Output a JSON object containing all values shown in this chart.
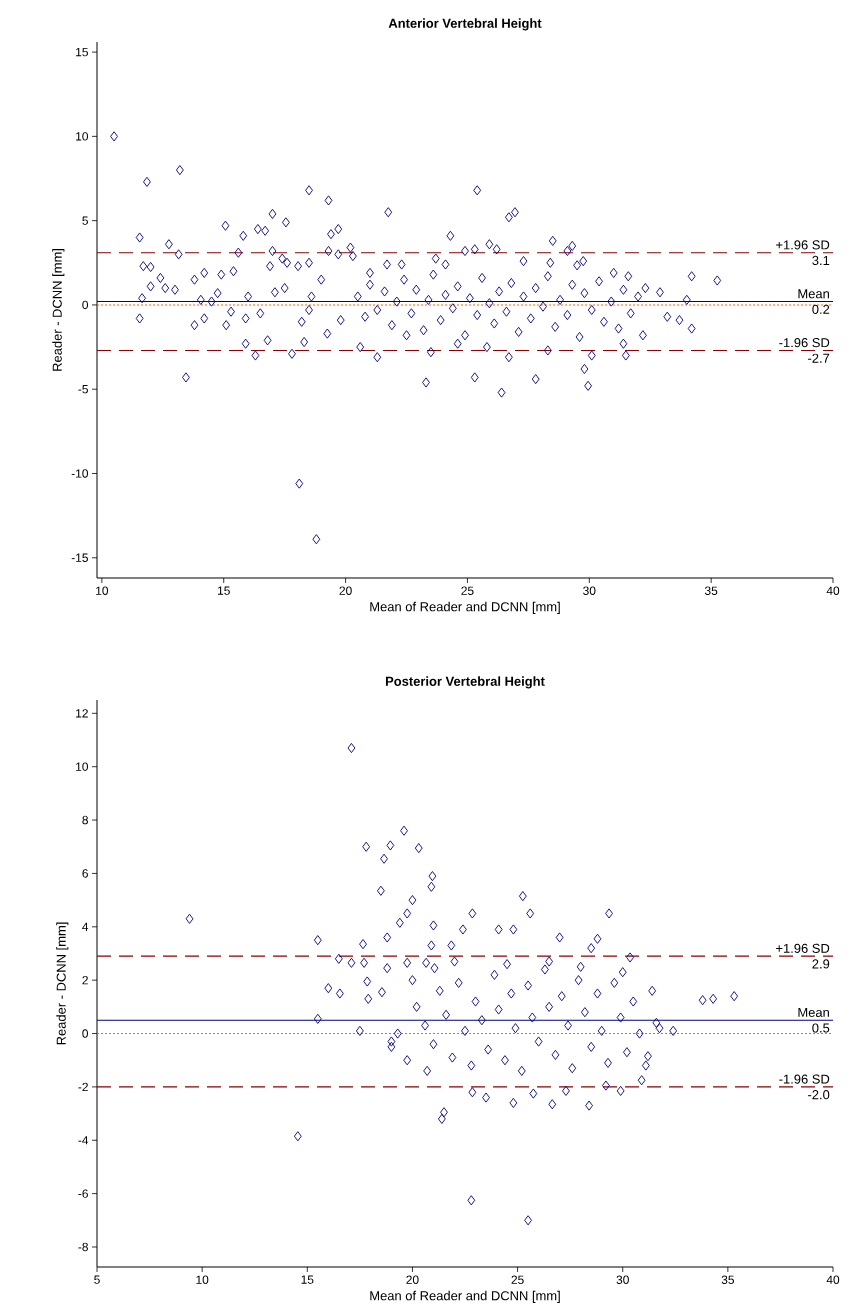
{
  "chart_data": [
    {
      "type": "scatter",
      "title": "Anterior Vertebral Height",
      "xlabel": "Mean of Reader and DCNN [mm]",
      "ylabel": "Reader - DCNN [mm]",
      "color": "#000080",
      "marker": "diamond",
      "x": [
        10.5,
        11.85,
        13.2,
        11.55,
        12.75,
        13.15,
        11.55,
        13.45,
        11.65,
        12.0,
        11.7,
        12.0,
        12.4,
        12.6,
        13.8,
        14.2,
        13.8,
        14.2,
        14.06,
        14.75,
        15.07,
        15.1,
        14.9,
        15.4,
        15.6,
        15.8,
        15.9,
        15.9,
        16.3,
        16.4,
        16.7,
        17.0,
        17.55,
        16.8,
        17.0,
        16.9,
        17.4,
        17.6,
        17.1,
        17.8,
        18.05,
        18.2,
        18.3,
        18.1,
        18.8,
        18.5,
        19.3,
        19.4,
        19.7,
        19.3,
        19.7,
        19.25,
        18.5,
        18.6,
        20.2,
        20.3,
        20.6,
        21.3,
        21.75,
        21.7,
        22.3,
        21.0,
        22.5,
        23.3,
        23.5,
        23.7,
        24.1,
        24.3,
        24.6,
        24.9,
        25.3,
        25.4,
        25.3,
        25.8,
        25.9,
        26.2,
        26.4,
        26.7,
        26.7,
        26.95,
        27.3,
        27.8,
        28.3,
        28.5,
        28.4,
        29.1,
        29.3,
        29.5,
        29.75,
        29.8,
        29.95,
        30.1,
        31.0,
        31.6,
        31.4,
        31.5,
        32.2,
        32.3,
        32.9,
        33.2,
        33.7,
        34.0,
        34.2,
        34.2,
        35.25,
        20.5,
        20.8,
        21.0,
        21.3,
        21.6,
        21.9,
        22.1,
        22.4,
        22.7,
        22.9,
        23.2,
        23.4,
        23.6,
        23.9,
        24.1,
        24.4,
        24.6,
        24.9,
        25.1,
        25.4,
        25.6,
        25.9,
        26.1,
        26.3,
        26.6,
        26.8,
        27.1,
        27.3,
        27.6,
        27.8,
        28.1,
        28.3,
        28.6,
        28.8,
        29.1,
        29.3,
        29.6,
        29.8,
        30.1,
        30.4,
        30.6,
        30.9,
        31.2,
        31.4,
        31.7,
        32.0,
        16.0,
        16.5,
        17.5,
        18.5,
        19.0,
        19.8,
        14.5,
        15.3,
        13.0
      ],
      "values": [
        10.0,
        7.3,
        8.0,
        4.0,
        3.6,
        3.0,
        -0.8,
        -4.3,
        0.4,
        1.1,
        2.3,
        2.25,
        1.6,
        1.0,
        -1.2,
        -0.8,
        1.5,
        1.9,
        0.3,
        0.7,
        4.7,
        -1.2,
        1.8,
        2.0,
        3.1,
        4.1,
        -0.8,
        -2.3,
        -3.0,
        4.5,
        4.4,
        5.4,
        4.9,
        -2.1,
        3.2,
        2.3,
        2.75,
        2.5,
        0.75,
        -2.9,
        2.3,
        -1.0,
        -2.2,
        -10.6,
        -13.9,
        6.8,
        6.2,
        4.2,
        4.5,
        3.2,
        3.0,
        -1.7,
        2.5,
        0.5,
        3.4,
        2.9,
        -2.5,
        -3.1,
        5.5,
        2.4,
        2.4,
        1.9,
        -1.8,
        -4.6,
        -2.8,
        2.75,
        2.4,
        4.1,
        -2.3,
        3.2,
        3.3,
        6.8,
        -4.3,
        -2.5,
        3.6,
        3.3,
        -5.2,
        -3.1,
        5.2,
        5.5,
        2.6,
        -4.4,
        -2.7,
        3.8,
        2.5,
        3.2,
        3.5,
        2.35,
        2.6,
        -3.8,
        -4.8,
        -3.0,
        1.9,
        1.7,
        -2.3,
        -3.0,
        -1.8,
        1.0,
        0.75,
        -0.7,
        -0.9,
        0.3,
        1.7,
        -1.4,
        1.45,
        0.5,
        -0.7,
        1.2,
        -0.3,
        0.8,
        -1.2,
        0.2,
        1.5,
        -0.5,
        0.9,
        -1.5,
        0.3,
        1.8,
        -0.9,
        0.6,
        -0.2,
        1.1,
        -1.8,
        0.4,
        -0.6,
        1.6,
        0.1,
        -1.1,
        0.8,
        -0.4,
        1.3,
        -1.6,
        0.5,
        -0.8,
        1.0,
        -0.1,
        1.7,
        -1.3,
        0.3,
        -0.6,
        1.2,
        -1.9,
        0.7,
        -0.3,
        1.4,
        -1.0,
        0.2,
        -1.4,
        0.9,
        -0.5,
        0.5,
        0.5,
        -0.5,
        1.0,
        -0.3,
        1.5,
        -0.9,
        0.2,
        -0.4,
        0.9
      ],
      "xlim": [
        9.8,
        40
      ],
      "xticks": [
        10,
        15,
        20,
        25,
        30,
        35,
        40
      ],
      "ylim": [
        -16.2,
        15.6
      ],
      "yticks": [
        -15,
        -10,
        -5,
        0,
        5,
        10,
        15
      ],
      "ref_lines": [
        {
          "axis": "y",
          "value": 3.1,
          "label": "+1.96 SD",
          "color": "#8b0000",
          "line_style": "dashed"
        },
        {
          "axis": "y",
          "value": 0.2,
          "label": "Mean",
          "color": "#000080",
          "line_style": "solid"
        },
        {
          "axis": "y",
          "value": -2.7,
          "label": "-1.96 SD",
          "color": "#8b0000",
          "line_style": "dashed"
        },
        {
          "axis": "y",
          "value": 0,
          "color": "#ff6600",
          "line_style": "dotted"
        }
      ],
      "annotations": [
        {
          "text": "3.1",
          "y": 3.1
        },
        {
          "text": "0.2",
          "y": 0.2
        },
        {
          "text": "-2.7",
          "y": -2.7
        }
      ]
    },
    {
      "type": "scatter",
      "title": "Posterior Vertebral Height",
      "xlabel": "Mean of Reader and DCNN [mm]",
      "ylabel": "Reader - DCNN [mm]",
      "color": "#000080",
      "marker": "diamond",
      "x": [
        9.4,
        17.1,
        14.55,
        15.5,
        15.5,
        16.0,
        16.5,
        16.55,
        17.1,
        17.5,
        17.8,
        17.65,
        17.7,
        17.85,
        17.9,
        18.5,
        18.65,
        18.95,
        18.8,
        18.8,
        18.55,
        19.0,
        19.6,
        20.3,
        19.4,
        19.75,
        20.0,
        20.95,
        20.9,
        21.0,
        20.9,
        21.85,
        19.75,
        20.65,
        21.05,
        19.75,
        20.7,
        21.5,
        21.4,
        22.4,
        22.85,
        22.8,
        22.85,
        23.5,
        24.1,
        24.8,
        25.25,
        25.6,
        24.8,
        25.5,
        25.75,
        26.65,
        27.0,
        27.3,
        28.4,
        28.5,
        28.8,
        29.35,
        29.2,
        29.9,
        30.35,
        30.9,
        31.2,
        31.75,
        32.4,
        33.8,
        34.3,
        35.3,
        20.2,
        20.6,
        21.0,
        21.3,
        21.6,
        21.9,
        22.2,
        22.5,
        22.8,
        23.0,
        23.3,
        23.6,
        23.9,
        24.1,
        24.4,
        24.7,
        24.9,
        25.2,
        25.5,
        25.7,
        26.0,
        26.3,
        26.5,
        26.8,
        27.1,
        27.4,
        27.6,
        27.9,
        28.2,
        28.5,
        28.8,
        29.0,
        29.3,
        29.6,
        29.9,
        30.2,
        30.5,
        30.8,
        31.1,
        31.4,
        31.6,
        19.3,
        19.0,
        20.0,
        22.0,
        24.5,
        26.5,
        28.0,
        30.0
      ],
      "values": [
        4.3,
        10.7,
        -3.85,
        3.5,
        0.55,
        1.7,
        2.8,
        1.5,
        2.65,
        0.1,
        7.0,
        3.35,
        2.65,
        1.95,
        1.3,
        5.35,
        6.55,
        7.05,
        3.6,
        2.45,
        1.55,
        -0.5,
        7.6,
        6.95,
        4.15,
        4.5,
        5.0,
        5.9,
        5.5,
        4.05,
        3.3,
        3.3,
        2.65,
        2.65,
        2.45,
        -1.0,
        -1.4,
        -2.95,
        -3.2,
        3.9,
        4.5,
        -6.25,
        -2.2,
        -2.4,
        3.9,
        3.9,
        5.15,
        4.5,
        -2.6,
        -7.0,
        -2.25,
        -2.65,
        3.6,
        -2.15,
        -2.7,
        3.2,
        3.55,
        4.5,
        -1.95,
        -2.15,
        2.85,
        -1.75,
        -0.85,
        0.2,
        0.1,
        1.25,
        1.3,
        1.4,
        1.0,
        0.3,
        -0.4,
        1.6,
        0.7,
        -0.9,
        1.9,
        0.1,
        -1.2,
        1.2,
        0.5,
        -0.6,
        2.2,
        0.9,
        -1.0,
        1.5,
        0.2,
        -1.4,
        1.8,
        0.6,
        -0.3,
        2.4,
        1.0,
        -0.8,
        1.4,
        0.3,
        -1.3,
        2.0,
        0.8,
        -0.5,
        1.5,
        0.1,
        -1.1,
        1.9,
        0.6,
        -0.7,
        1.2,
        0.0,
        -1.2,
        1.6,
        0.4,
        0.0,
        -0.3,
        2.0,
        2.7,
        2.6,
        2.7,
        2.5,
        2.3
      ],
      "xlim": [
        5,
        40
      ],
      "xticks": [
        5,
        10,
        15,
        20,
        25,
        30,
        35,
        40
      ],
      "ylim": [
        -8.75,
        12.5
      ],
      "yticks": [
        -8,
        -6,
        -4,
        -2,
        0,
        2,
        4,
        6,
        8,
        10,
        12
      ],
      "ref_lines": [
        {
          "axis": "y",
          "value": 2.9,
          "label": "+1.96 SD",
          "color": "#8b0000",
          "line_style": "dashed"
        },
        {
          "axis": "y",
          "value": 0.5,
          "label": "Mean",
          "color": "#000080",
          "line_style": "solid"
        },
        {
          "axis": "y",
          "value": -2.0,
          "label": "-1.96 SD",
          "color": "#8b0000",
          "line_style": "dashed"
        },
        {
          "axis": "y",
          "value": 0,
          "color": "#ff6600",
          "line_style": "dotted"
        }
      ],
      "annotations": [
        {
          "text": "2.9",
          "y": 2.9
        },
        {
          "text": "0.5",
          "y": 0.5
        },
        {
          "text": "-2.0",
          "y": -2.0
        }
      ]
    }
  ]
}
